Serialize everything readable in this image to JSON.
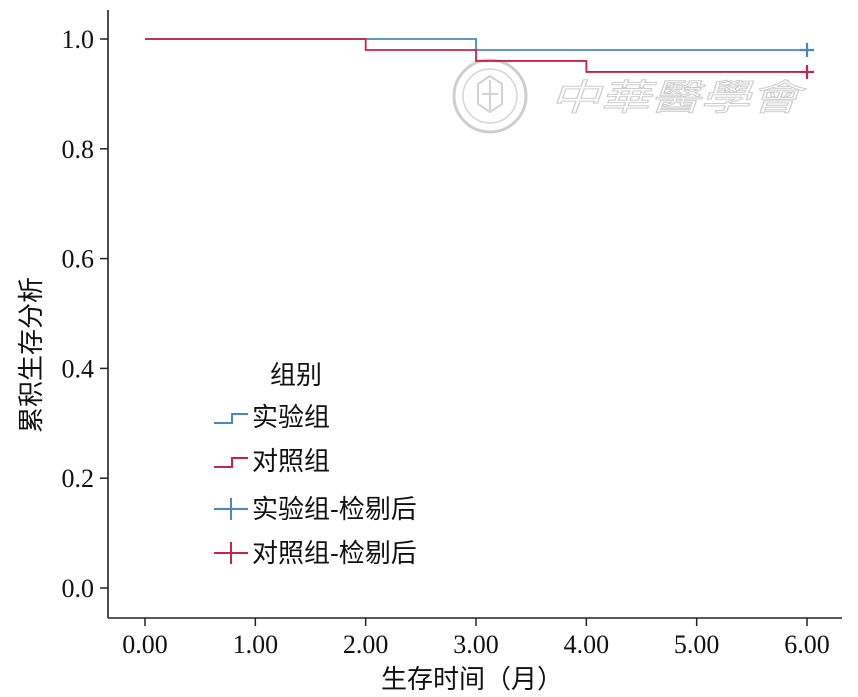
{
  "chart_data": {
    "type": "line",
    "subtype": "kaplan-meier step",
    "title": "",
    "xlabel": "生存时间（月）",
    "ylabel": "累积生存分析",
    "xlim": [
      0,
      6
    ],
    "ylim": [
      0,
      1
    ],
    "x_ticks": [
      "0.00",
      "1.00",
      "2.00",
      "3.00",
      "4.00",
      "5.00",
      "6.00"
    ],
    "y_ticks": [
      "0.0",
      "0.2",
      "0.4",
      "0.6",
      "0.8",
      "1.0"
    ],
    "grid": false,
    "legend": {
      "title": "组别",
      "placement": "center-left",
      "entries": [
        "实验组",
        "对照组",
        "实验组-检剔后",
        "对照组-检剔后"
      ]
    },
    "series": [
      {
        "name": "实验组",
        "color": "#4a86c8",
        "x": [
          0,
          3,
          6
        ],
        "y": [
          1.0,
          0.98,
          0.98
        ],
        "censored": [
          {
            "x": 6,
            "y": 0.98
          }
        ]
      },
      {
        "name": "对照组",
        "color": "#c8234a",
        "x": [
          0,
          2,
          3,
          4,
          6
        ],
        "y": [
          1.0,
          0.98,
          0.96,
          0.94,
          0.94
        ],
        "censored": [
          {
            "x": 6,
            "y": 0.94
          }
        ]
      }
    ]
  },
  "watermark": {
    "text": "中華醫學會"
  }
}
